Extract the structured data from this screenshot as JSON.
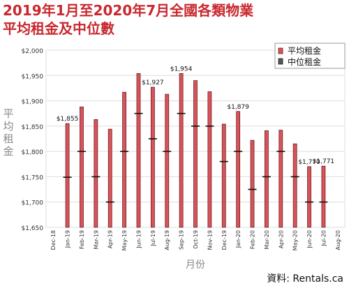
{
  "title_line1": "2019年1月至2020年7月全國各類物業",
  "title_line2": "平均租金及中位數",
  "source": "資料: Rentals.ca",
  "colors": {
    "title": "#c8282e",
    "bar": "#d9545a",
    "bar_edge": "#6b1f22",
    "median": "#111111",
    "grid": "#dddddd",
    "axis": "#888888"
  },
  "chart_data": {
    "type": "bar",
    "xlabel": "月份",
    "ylabel": "平均租金",
    "ylim": [
      1650,
      2000
    ],
    "yticks": [
      1650,
      1700,
      1750,
      1800,
      1850,
      1900,
      1950,
      2000
    ],
    "ytick_labels": [
      "$1,650",
      "$1,700",
      "$1,750",
      "$1,800",
      "$1,850",
      "$1,900",
      "$1,950",
      "$2,000"
    ],
    "categories": [
      "Dec-18",
      "Jan-19",
      "Feb-19",
      "Mar-19",
      "Apr-19",
      "May-19",
      "Jun-19",
      "Jul-19",
      "Aug-19",
      "Sep-19",
      "Oct-19",
      "Nov-19",
      "Dec-19",
      "Jan-20",
      "Feb-20",
      "Mar-20",
      "Apr-20",
      "May-20",
      "Jun-20",
      "Jul-20",
      "Aug-20"
    ],
    "legend": {
      "position": "top-right",
      "items": [
        "平均租金",
        "中位租金"
      ]
    },
    "series": [
      {
        "name": "平均租金",
        "values": [
          null,
          1855,
          1888,
          1863,
          1844,
          1917,
          1954,
          1927,
          1913,
          1954,
          1940,
          1918,
          1854,
          1879,
          1822,
          1841,
          1842,
          1815,
          1770,
          1771,
          null
        ]
      },
      {
        "name": "中位租金",
        "values": [
          null,
          1749,
          1800,
          1750,
          1700,
          1800,
          1875,
          1825,
          1800,
          1875,
          1850,
          1850,
          1780,
          1800,
          1725,
          1750,
          1800,
          1750,
          1700,
          1700,
          null
        ]
      }
    ],
    "data_labels": [
      {
        "category": "Jan-19",
        "text": "$1,855"
      },
      {
        "category": "Jul-19",
        "text": "$1,927"
      },
      {
        "category": "Sep-19",
        "text": "$1,954"
      },
      {
        "category": "Jan-20",
        "text": "$1,879"
      },
      {
        "category": "Jun-20",
        "text": "$1,770"
      },
      {
        "category": "Jul-20",
        "text": "$1,771"
      }
    ]
  }
}
